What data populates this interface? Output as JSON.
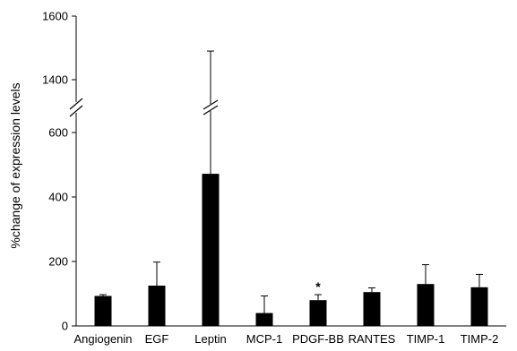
{
  "chart_data": {
    "type": "bar",
    "ylabel": "%change of expression levels",
    "categories": [
      "Angiogenin",
      "EGF",
      "Leptin",
      "MCP-1",
      "PDGF-BB",
      "RANTES",
      "TIMP-1",
      "TIMP-2"
    ],
    "values": [
      93,
      125,
      472,
      40,
      80,
      105,
      130,
      120
    ],
    "error_upper": [
      97,
      198,
      1490,
      93,
      97,
      118,
      190,
      160
    ],
    "ylim": [
      0,
      1600
    ],
    "axis_break": {
      "from": 650,
      "to": 1350
    },
    "lower_ticks": [
      "0",
      "200",
      "400",
      "600"
    ],
    "upper_ticks": [
      "1400",
      "1600"
    ],
    "annotations": [
      {
        "category": "PDGF-BB",
        "text": "*"
      }
    ],
    "bar_color": "#000000",
    "grid": false,
    "legend": "none"
  }
}
